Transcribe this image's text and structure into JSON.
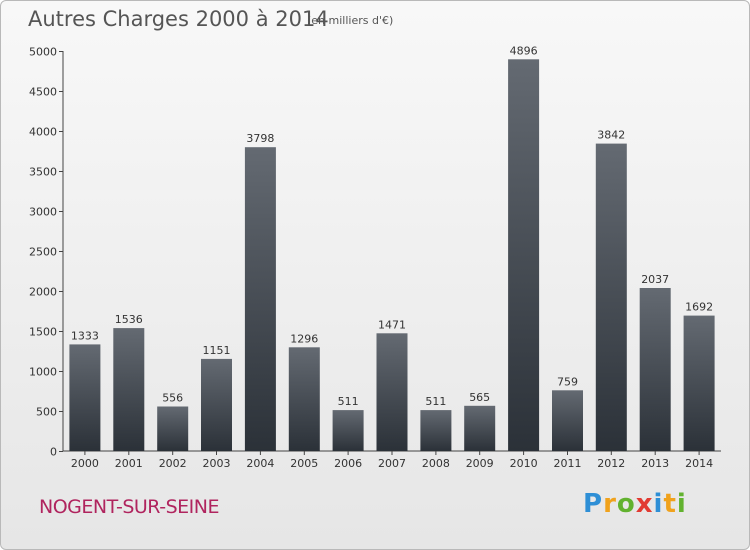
{
  "header": {
    "title": "Autres Charges 2000 à 2014",
    "unit": "(en milliers d'€)"
  },
  "footer": {
    "city": "NOGENT-SUR-SEINE",
    "logo_text": "Proxiti",
    "logo_colors": [
      "#2e8fd6",
      "#f0a21c",
      "#62b22f",
      "#e23b32",
      "#2e8fd6",
      "#f0a21c",
      "#62b22f"
    ]
  },
  "colors": {
    "bar_top": "#646a72",
    "bar_bottom": "#2b3138",
    "city": "#b0245e",
    "text": "#555555"
  },
  "chart_data": {
    "type": "bar",
    "title": "Autres Charges 2000 à 2014",
    "subtitle": "(en milliers d'€)",
    "categories": [
      "2000",
      "2001",
      "2002",
      "2003",
      "2004",
      "2005",
      "2006",
      "2007",
      "2008",
      "2009",
      "2010",
      "2011",
      "2012",
      "2013",
      "2014"
    ],
    "values": [
      1333,
      1536,
      556,
      1151,
      3798,
      1296,
      511,
      1471,
      511,
      565,
      4896,
      759,
      3842,
      2037,
      1692
    ],
    "ylim": [
      0,
      5000
    ],
    "yticks": [
      0,
      500,
      1000,
      1500,
      2000,
      2500,
      3000,
      3500,
      4000,
      4500,
      5000
    ],
    "grid": false,
    "xlabel": "",
    "ylabel": ""
  }
}
